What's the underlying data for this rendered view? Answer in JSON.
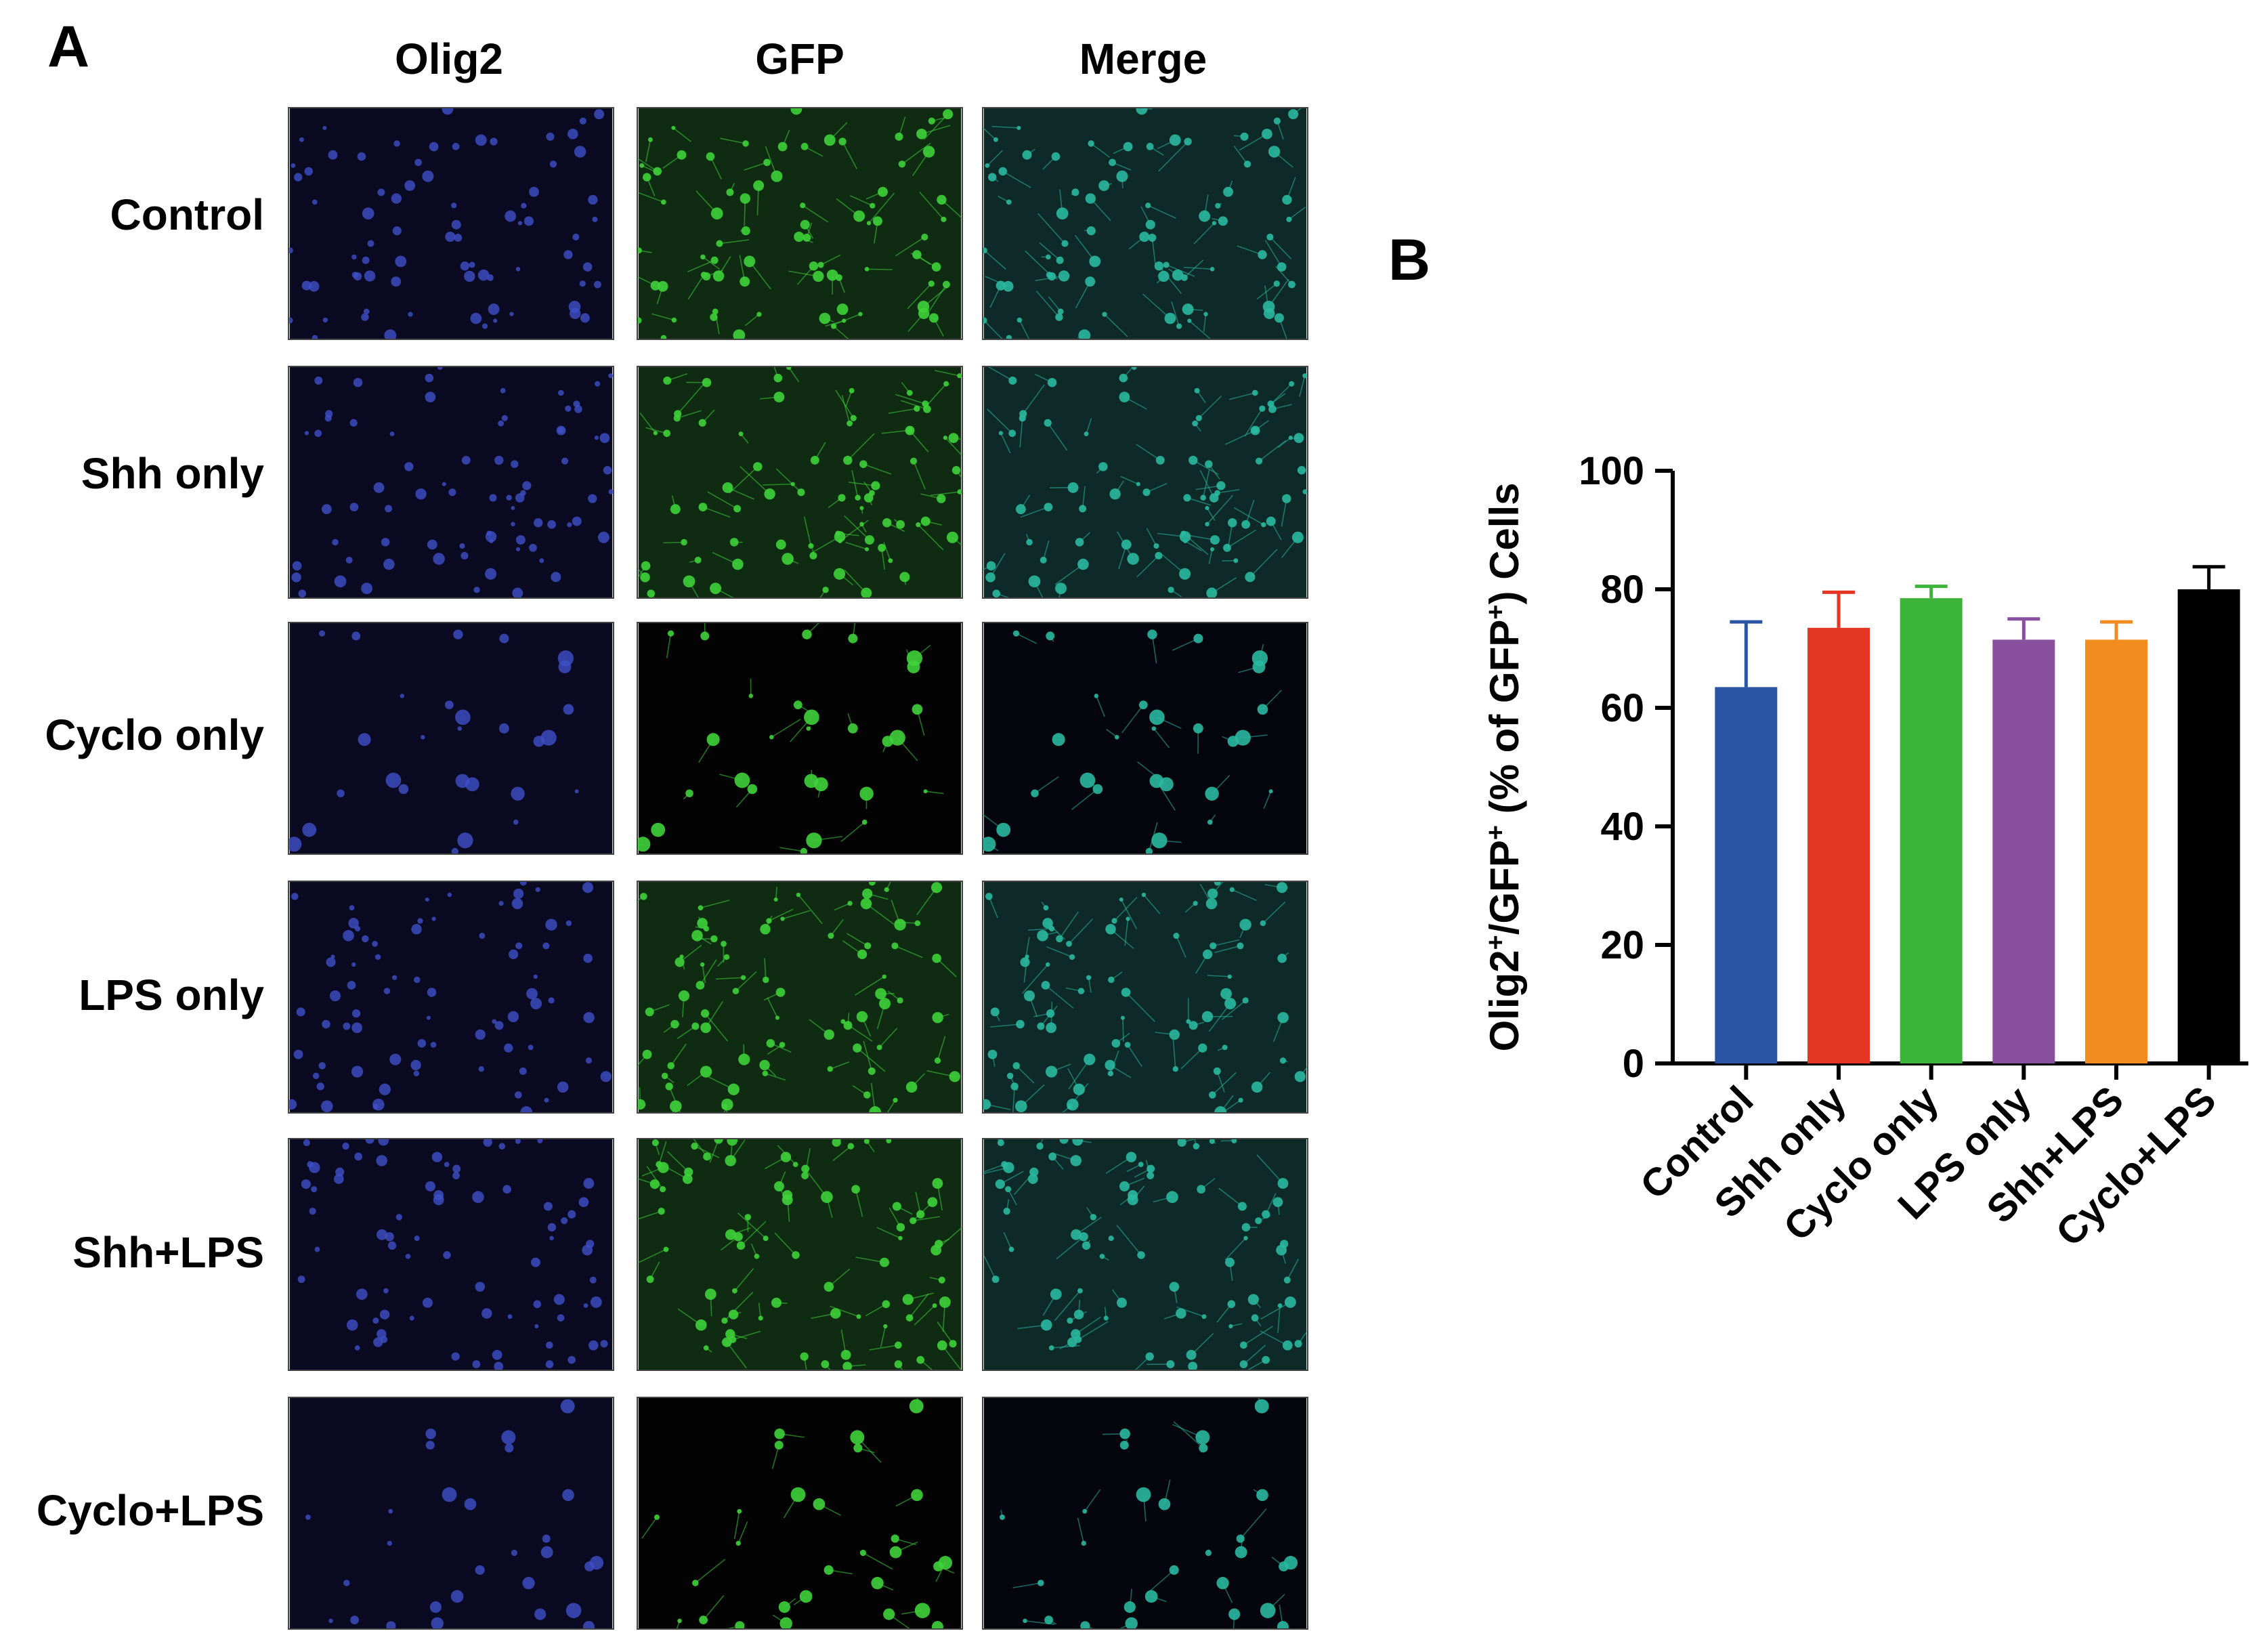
{
  "panels": {
    "a": "A",
    "b": "B"
  },
  "columns": [
    "Olig2",
    "GFP",
    "Merge"
  ],
  "rows": [
    "Control",
    "Shh only",
    "Cyclo only",
    "LPS only",
    "Shh+LPS",
    "Cyclo+LPS"
  ],
  "colors": {
    "olig2_bg": "#0a0a22",
    "olig2_cell": "#3f4fc8",
    "gfp_bg_dim": "#0f2c12",
    "gfp_bg_dark": "#030303",
    "gfp_cell": "#3ed23a",
    "merge_cell": "#2ab8a0"
  },
  "chart_data": {
    "type": "bar",
    "categories": [
      "Control",
      "Shh only",
      "Cyclo only",
      "LPS only",
      "Shh+LPS",
      "Cyclo+LPS"
    ],
    "values": [
      63.5,
      73.5,
      78.5,
      71.5,
      71.5,
      80
    ],
    "errors": [
      11,
      6,
      2,
      3.5,
      3,
      3.8
    ],
    "colors": [
      "#2a55a4",
      "#e53624",
      "#3cb43a",
      "#8a50a0",
      "#f28c1e",
      "#000000"
    ],
    "ylabel_parts": [
      "Olig2",
      "+",
      "/GFP",
      "+",
      " (% of GFP",
      "+",
      ") Cells"
    ],
    "yticks": [
      "0",
      "20",
      "40",
      "60",
      "80",
      "100"
    ],
    "ylim": [
      0,
      100
    ]
  }
}
